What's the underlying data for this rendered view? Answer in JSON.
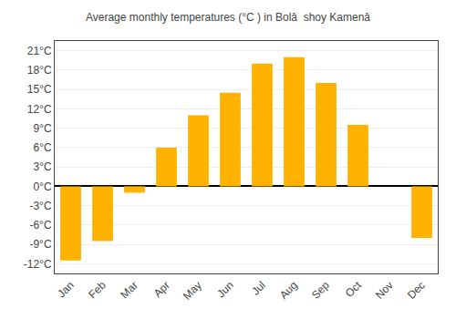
{
  "chart_data": {
    "type": "bar",
    "title": "Average monthly temperatures (°C ) in Bolâ  shoy Kamenâ",
    "categories": [
      "Jan",
      "Feb",
      "Mar",
      "Apr",
      "May",
      "Jun",
      "Jul",
      "Aug",
      "Sep",
      "Oct",
      "Nov",
      "Dec"
    ],
    "values": [
      -11.5,
      -8.5,
      -1.0,
      6.0,
      11.0,
      14.5,
      19.0,
      20.0,
      16.0,
      9.5,
      0.0,
      -8.0
    ],
    "color": "#FFB300",
    "ylim": [
      -13.5,
      22.5
    ],
    "yticks": [
      {
        "value": -12,
        "label": "-12°C"
      },
      {
        "value": -9,
        "label": "-9°C"
      },
      {
        "value": -6,
        "label": "-6°C"
      },
      {
        "value": -3,
        "label": "-3°C"
      },
      {
        "value": 0,
        "label": "0°C"
      },
      {
        "value": 3,
        "label": "3°C"
      },
      {
        "value": 6,
        "label": "6°C"
      },
      {
        "value": 9,
        "label": "9°C"
      },
      {
        "value": 12,
        "label": "12°C"
      },
      {
        "value": 15,
        "label": "15°C"
      },
      {
        "value": 18,
        "label": "18°C"
      },
      {
        "value": 21,
        "label": "21°C"
      }
    ],
    "grid": true
  }
}
